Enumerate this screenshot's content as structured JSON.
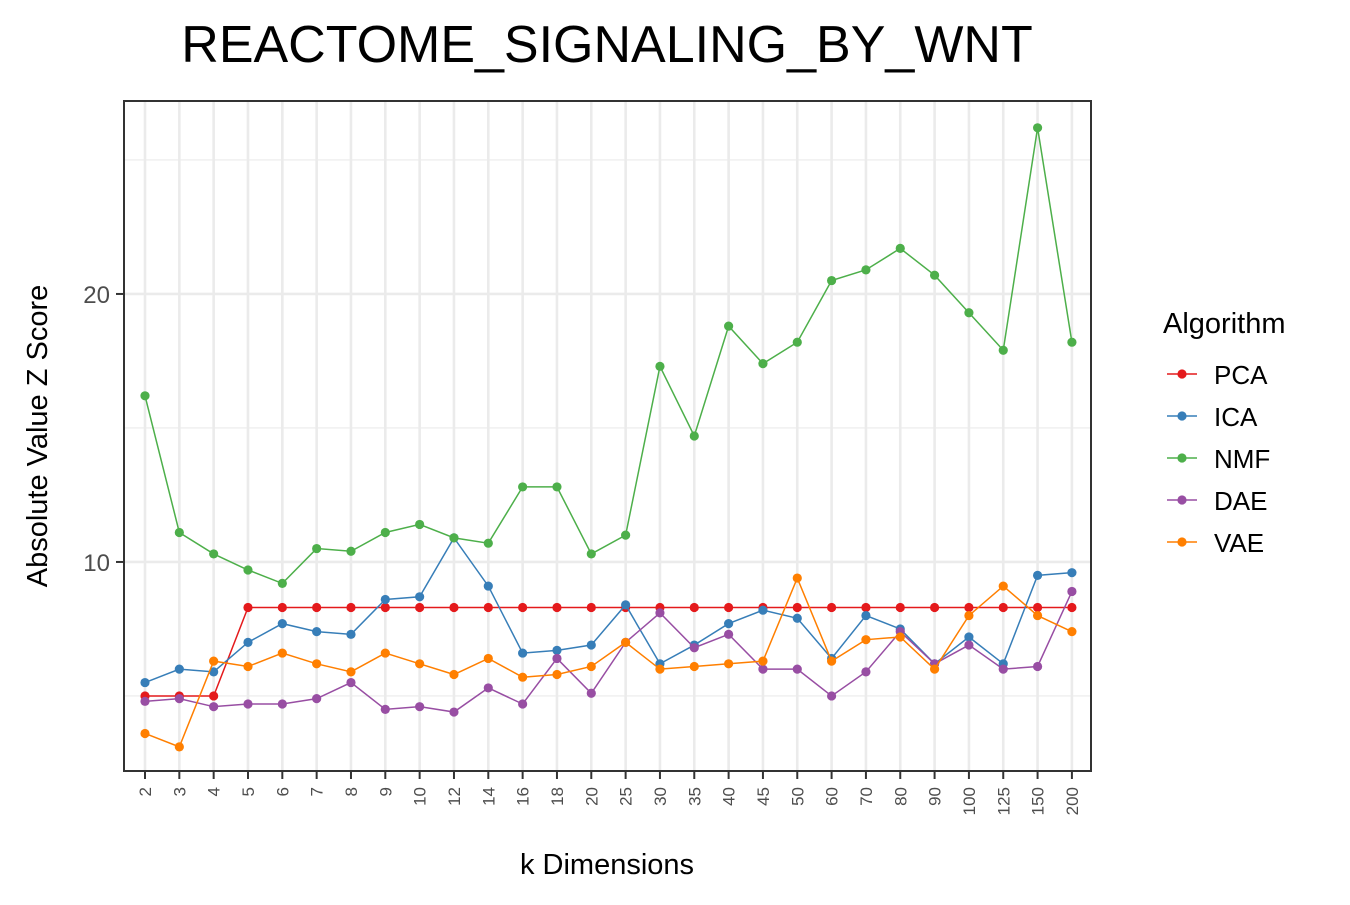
{
  "chart_data": {
    "type": "line",
    "title": "REACTOME_SIGNALING_BY_WNT",
    "xlabel": "k Dimensions",
    "ylabel": "Absolute Value Z Score",
    "categories": [
      "2",
      "3",
      "4",
      "5",
      "6",
      "7",
      "8",
      "9",
      "10",
      "12",
      "14",
      "16",
      "18",
      "20",
      "25",
      "30",
      "35",
      "40",
      "45",
      "50",
      "60",
      "70",
      "80",
      "90",
      "100",
      "125",
      "150",
      "200"
    ],
    "ylim": [
      2.2,
      27.2
    ],
    "yticks": [
      10,
      20
    ],
    "grid": true,
    "legend": {
      "title": "Algorithm",
      "position": "right"
    },
    "series": [
      {
        "name": "PCA",
        "color": "#E41A1C",
        "values": [
          5.0,
          5.0,
          5.0,
          8.3,
          8.3,
          8.3,
          8.3,
          8.3,
          8.3,
          8.3,
          8.3,
          8.3,
          8.3,
          8.3,
          8.3,
          8.3,
          8.3,
          8.3,
          8.3,
          8.3,
          8.3,
          8.3,
          8.3,
          8.3,
          8.3,
          8.3,
          8.3,
          8.3
        ]
      },
      {
        "name": "ICA",
        "color": "#377EB8",
        "values": [
          5.5,
          6.0,
          5.9,
          7.0,
          7.7,
          7.4,
          7.3,
          8.6,
          8.7,
          10.9,
          9.1,
          6.6,
          6.7,
          6.9,
          8.4,
          6.2,
          6.9,
          7.7,
          8.2,
          7.9,
          6.4,
          8.0,
          7.5,
          6.2,
          7.2,
          6.2,
          9.5,
          9.6
        ]
      },
      {
        "name": "NMF",
        "color": "#4DAF4A",
        "values": [
          16.2,
          11.1,
          10.3,
          9.7,
          9.2,
          10.5,
          10.4,
          11.1,
          11.4,
          10.9,
          10.7,
          12.8,
          12.8,
          10.3,
          11.0,
          17.3,
          14.7,
          18.8,
          17.4,
          18.2,
          20.5,
          20.9,
          21.7,
          20.7,
          19.3,
          17.9,
          26.2,
          18.2
        ]
      },
      {
        "name": "DAE",
        "color": "#984EA3",
        "values": [
          4.8,
          4.9,
          4.6,
          4.7,
          4.7,
          4.9,
          5.5,
          4.5,
          4.6,
          4.4,
          5.3,
          4.7,
          6.4,
          5.1,
          7.0,
          8.1,
          6.8,
          7.3,
          6.0,
          6.0,
          5.0,
          5.9,
          7.4,
          6.2,
          6.9,
          6.0,
          6.1,
          8.9
        ]
      },
      {
        "name": "VAE",
        "color": "#FF7F00",
        "values": [
          3.6,
          3.1,
          6.3,
          6.1,
          6.6,
          6.2,
          5.9,
          6.6,
          6.2,
          5.8,
          6.4,
          5.7,
          5.8,
          6.1,
          7.0,
          6.0,
          6.1,
          6.2,
          6.3,
          9.4,
          6.3,
          7.1,
          7.2,
          6.0,
          8.0,
          9.1,
          8.0,
          7.4
        ]
      }
    ]
  }
}
